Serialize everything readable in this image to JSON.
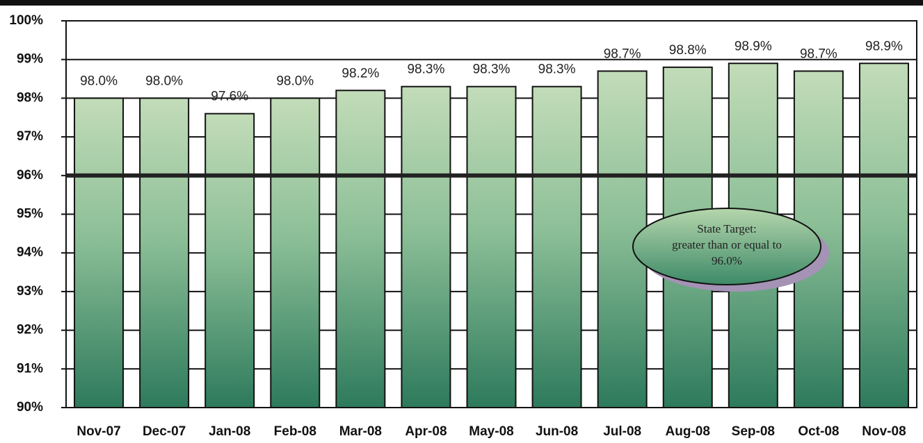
{
  "chart_data": {
    "type": "bar",
    "categories": [
      "Nov-07",
      "Dec-07",
      "Jan-08",
      "Feb-08",
      "Mar-08",
      "Apr-08",
      "May-08",
      "Jun-08",
      "Jul-08",
      "Aug-08",
      "Sep-08",
      "Oct-08",
      "Nov-08"
    ],
    "values": [
      98.0,
      98.0,
      97.6,
      98.0,
      98.2,
      98.3,
      98.3,
      98.3,
      98.7,
      98.8,
      98.9,
      98.7,
      98.9
    ],
    "value_labels": [
      "98.0%",
      "98.0%",
      "97.6%",
      "98.0%",
      "98.2%",
      "98.3%",
      "98.3%",
      "98.3%",
      "98.7%",
      "98.8%",
      "98.9%",
      "98.7%",
      "98.9%"
    ],
    "ylim": [
      90,
      100
    ],
    "yticks": [
      {
        "value": 90,
        "label": "90%"
      },
      {
        "value": 91,
        "label": "91%"
      },
      {
        "value": 92,
        "label": "92%"
      },
      {
        "value": 93,
        "label": "93%"
      },
      {
        "value": 94,
        "label": "94%"
      },
      {
        "value": 95,
        "label": "95%"
      },
      {
        "value": 96,
        "label": "96%"
      },
      {
        "value": 97,
        "label": "97%"
      },
      {
        "value": 98,
        "label": "98%"
      },
      {
        "value": 99,
        "label": "99%"
      },
      {
        "value": 100,
        "label": "100%"
      }
    ],
    "grid": true,
    "target": 96,
    "annotation": [
      "State Target:",
      "greater than or equal to",
      "96.0%"
    ]
  }
}
